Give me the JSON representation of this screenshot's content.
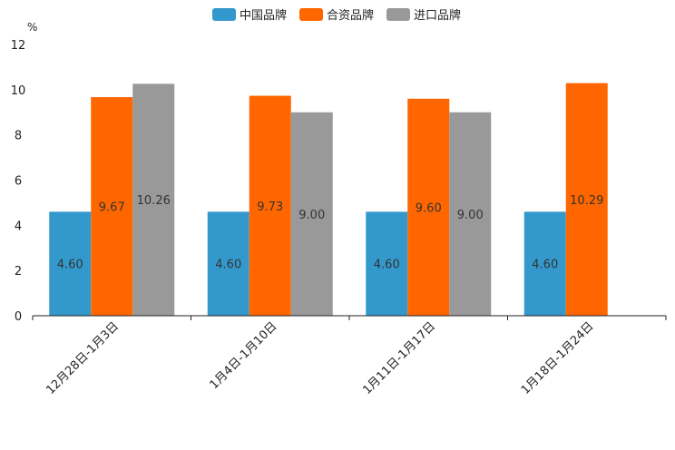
{
  "chart_data": {
    "type": "bar",
    "unit": "%",
    "categories": [
      "12月28日-1月3日",
      "1月4日-1月10日",
      "1月11日-1月17日",
      "1月18日-1月24日"
    ],
    "series": [
      {
        "name": "中国品牌",
        "color": "#3399cc",
        "values": [
          4.6,
          4.6,
          4.6,
          4.6
        ],
        "labels": [
          "4.60",
          "4.60",
          "4.60",
          "4.60"
        ]
      },
      {
        "name": "合资品牌",
        "color": "#ff6600",
        "values": [
          9.67,
          9.73,
          9.6,
          10.29
        ],
        "labels": [
          "9.67",
          "9.73",
          "9.60",
          "10.29"
        ]
      },
      {
        "name": "进口品牌",
        "color": "#999999",
        "values": [
          10.26,
          9.0,
          9.0,
          null
        ],
        "labels": [
          "10.26",
          "9.00",
          "9.00",
          null
        ]
      }
    ],
    "ylim": [
      0,
      12
    ],
    "yticks": [
      "0",
      "2",
      "4",
      "6",
      "8",
      "10",
      "12"
    ],
    "grid": false,
    "legend_position": "top-center"
  }
}
